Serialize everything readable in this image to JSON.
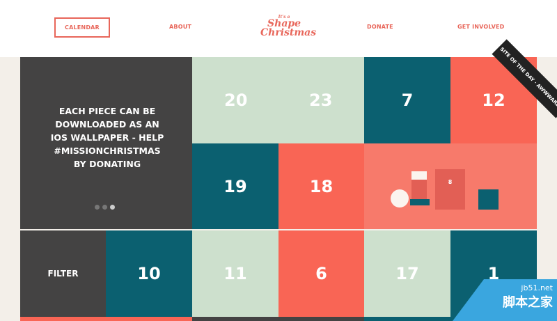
{
  "nav": {
    "calendar": "CALENDAR",
    "about": "ABOUT",
    "donate": "DONATE",
    "get_involved": "GET INVOLVED"
  },
  "logo": {
    "small": "It's a",
    "line1": "Shape",
    "line2": "Christmas"
  },
  "intro": {
    "text": "EACH PIECE CAN BE DOWNLOADED AS AN IOS WALLPAPER - HELP #MISSIONCHRISTMAS BY DONATING",
    "slides": 3,
    "active_slide": 3
  },
  "filter_label": "FILTER",
  "days": {
    "d20": "20",
    "d23": "23",
    "d7": "7",
    "d12": "12",
    "d19": "19",
    "d18": "18",
    "d8": "8",
    "d10": "10",
    "d11": "11",
    "d6": "6",
    "d17": "17",
    "d1": "1"
  },
  "badge": {
    "line1": "SITE OF THE DAY",
    "line2": "AWWWARDS"
  },
  "watermark": {
    "line1": "jb51.net",
    "line2": "脚本之家"
  },
  "colors": {
    "dark": "#444343",
    "green": "#cde0cd",
    "teal": "#0b6070",
    "coral": "#f96555",
    "accent": "#e8665a"
  }
}
